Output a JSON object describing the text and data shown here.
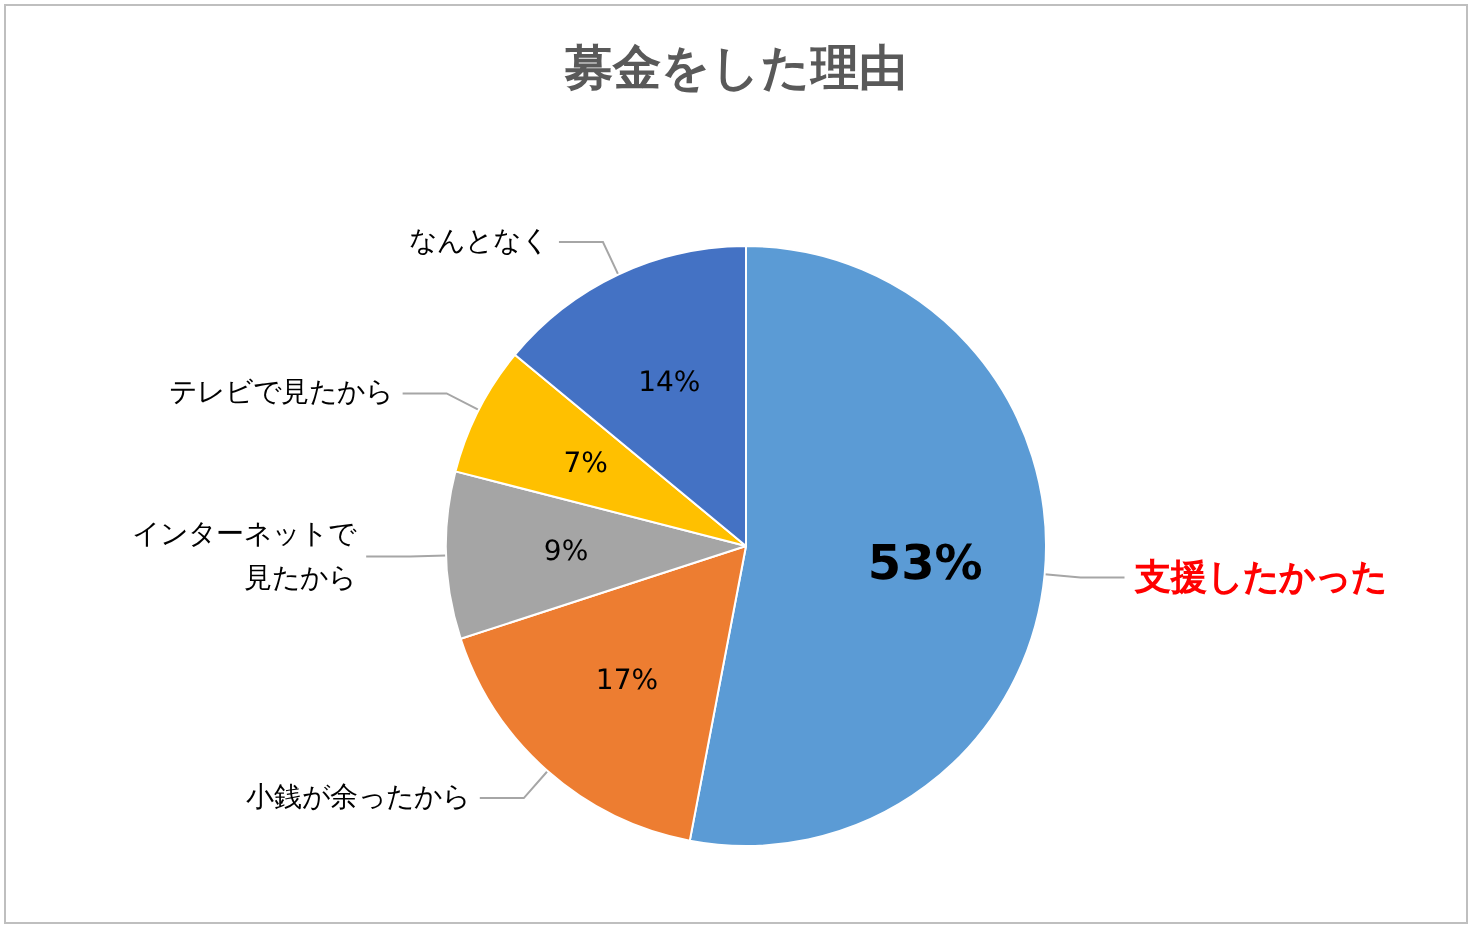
{
  "chart_data": {
    "type": "pie",
    "title": "募金をした理由",
    "categories": [
      "支援したかった",
      "小銭が余ったから",
      "インターネットで見たから",
      "テレビで見たから",
      "なんとなく"
    ],
    "values": [
      53,
      17,
      9,
      7,
      14
    ],
    "value_labels": [
      "53%",
      "17%",
      "9%",
      "7%",
      "14%"
    ],
    "colors": [
      "#5b9bd5",
      "#ed7d31",
      "#a5a5a5",
      "#ffc000",
      "#4472c4"
    ],
    "legend": false
  }
}
